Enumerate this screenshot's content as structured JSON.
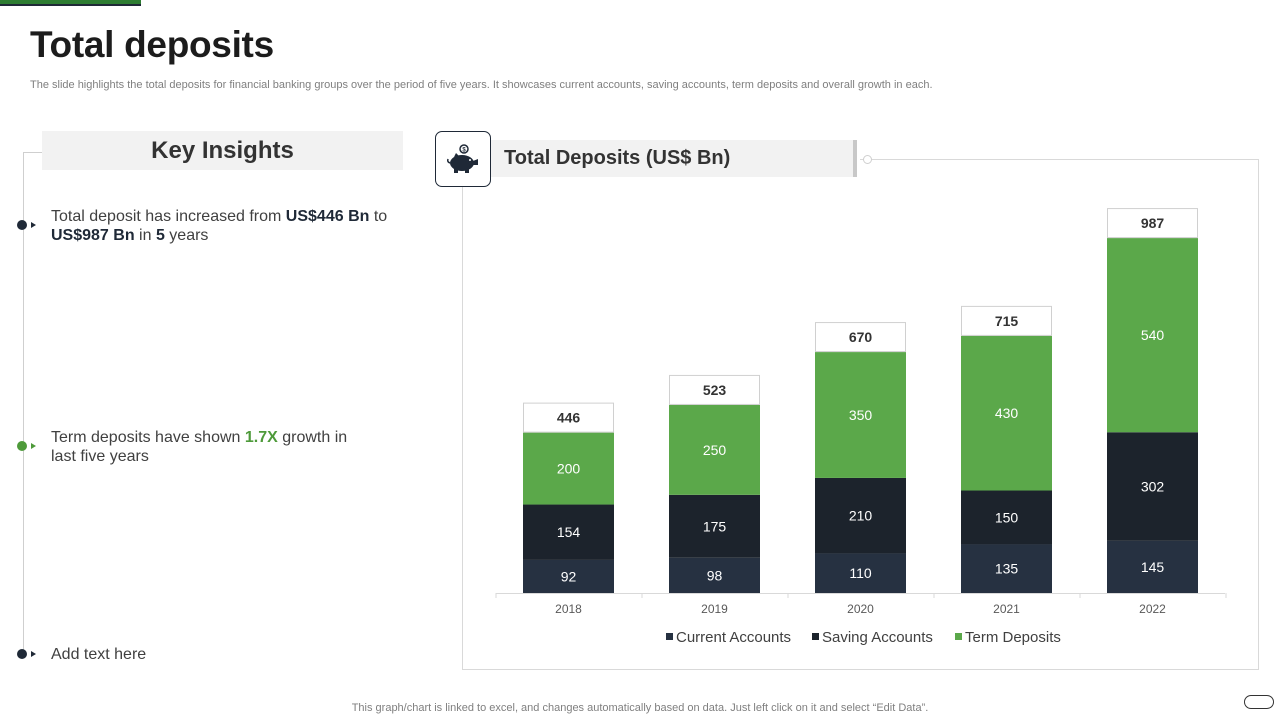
{
  "page": {
    "title": "Total deposits",
    "subtitle": "The slide highlights the total deposits for financial banking groups over the period of five years. It showcases current accounts, saving accounts, term deposits and overall growth in each.",
    "footer": "This graph/chart is linked to excel,  and changes automatically based on data. Just left click on it and select “Edit Data”."
  },
  "insights": {
    "heading": "Key Insights",
    "items": [
      {
        "p1": "Total deposit has increased from ",
        "b1": "US$446 Bn",
        "p2": " to ",
        "b2": "US$987 Bn",
        "p3": " in ",
        "b3": "5",
        "p4": " years"
      },
      {
        "p1": "Term deposits have shown ",
        "g1": "1.7X",
        "p2": " growth  in last five years"
      },
      {
        "p1": "Add text here"
      }
    ]
  },
  "icons": {
    "piggy": "piggy-bank-icon"
  },
  "colors": {
    "current": "#263141",
    "saving": "#1c232c",
    "term": "#5ba84a",
    "dark_bullet": "#1f2937",
    "green_bullet": "#4e9a3a"
  },
  "chart_data": {
    "type": "bar",
    "stacked": true,
    "title": "Total Deposits (US$ Bn)",
    "categories": [
      "2018",
      "2019",
      "2020",
      "2021",
      "2022"
    ],
    "series": [
      {
        "name": "Current Accounts",
        "values": [
          92,
          98,
          110,
          135,
          145
        ]
      },
      {
        "name": "Saving Accounts",
        "values": [
          154,
          175,
          210,
          150,
          302
        ]
      },
      {
        "name": "Term Deposits",
        "values": [
          200,
          250,
          350,
          430,
          540
        ]
      }
    ],
    "totals": [
      446,
      523,
      670,
      715,
      987
    ],
    "xlabel": "",
    "ylabel": "",
    "ylim": [
      0,
      1100
    ],
    "grid": false,
    "legend": "bottom"
  }
}
